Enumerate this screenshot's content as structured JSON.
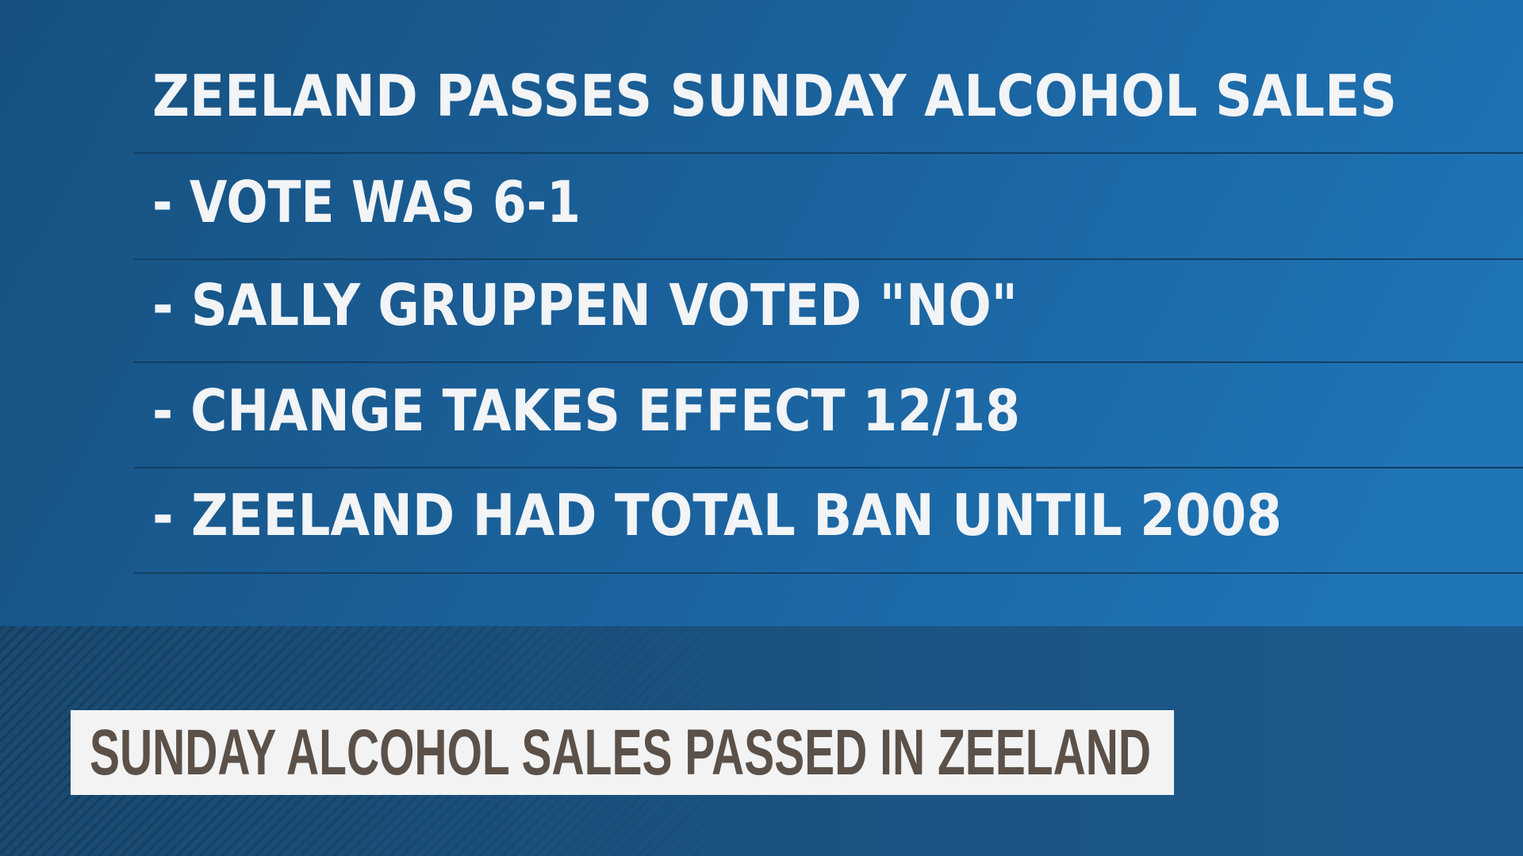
{
  "headline": "ZEELAND PASSES SUNDAY ALCOHOL SALES",
  "bullets": [
    "- VOTE WAS 6-1",
    "- SALLY GRUPPEN VOTED \"NO\"",
    "- CHANGE TAKES EFFECT 12/18",
    "- ZEELAND HAD TOTAL BAN UNTIL 2008"
  ],
  "lower_third": "SUNDAY ALCOHOL SALES PASSED IN ZEELAND"
}
